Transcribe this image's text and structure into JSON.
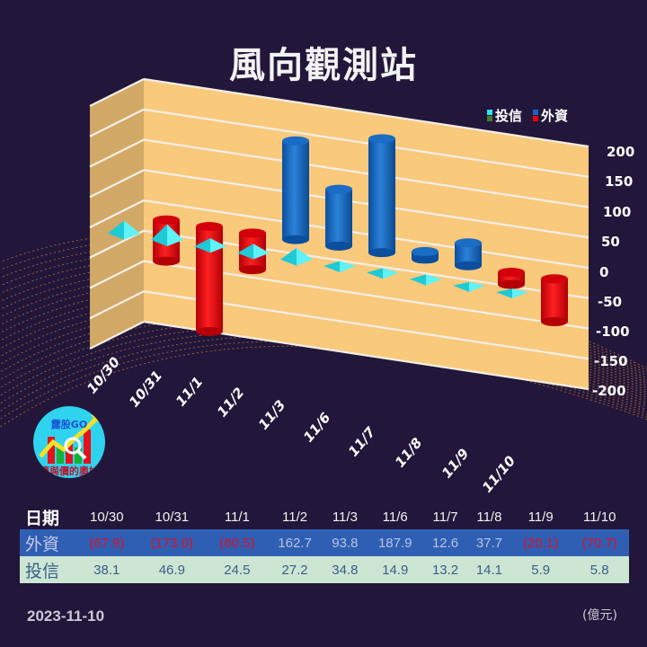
{
  "title": "風向觀測站",
  "legend": [
    {
      "label": "投信",
      "colors": [
        "#2ee6f0",
        "#4a7a2e"
      ]
    },
    {
      "label": "外資",
      "colors": [
        "#1466c2",
        "#e8000c"
      ]
    }
  ],
  "y_ticks": [
    "200",
    "150",
    "100",
    "50",
    "0",
    "-50",
    "-100",
    "-150",
    "-200"
  ],
  "x_labels": [
    "10/30",
    "10/31",
    "11/1",
    "11/2",
    "11/3",
    "11/6",
    "11/7",
    "11/8",
    "11/9",
    "11/10"
  ],
  "logo": {
    "brand": "露股GO",
    "slogan": "籌與價的奧妙"
  },
  "table": {
    "header_label": "日期",
    "dates": [
      "10/30",
      "10/31",
      "11/1",
      "11/2",
      "11/3",
      "11/6",
      "11/7",
      "11/8",
      "11/9",
      "11/10"
    ],
    "foreign": {
      "label": "外資",
      "values": [
        "(67.9)",
        "(173.0)",
        "(60.5)",
        "162.7",
        "93.8",
        "187.9",
        "12.6",
        "37.7",
        "(20.1)",
        "(70.7)"
      ]
    },
    "trust": {
      "label": "投信",
      "values": [
        "38.1",
        "46.9",
        "24.5",
        "27.2",
        "34.8",
        "14.9",
        "13.2",
        "14.1",
        "5.9",
        "5.8"
      ]
    }
  },
  "footer": {
    "date": "2023-11-10",
    "unit": "(億元)"
  },
  "colors": {
    "background": "#22163a",
    "wall": "#f9c97c",
    "foreign_pos": "#1466c2",
    "foreign_neg": "#e8000c",
    "trust": "#2ee6f0"
  },
  "chart_data": {
    "type": "bar",
    "title": "風向觀測站",
    "categories": [
      "10/30",
      "10/31",
      "11/1",
      "11/2",
      "11/3",
      "11/6",
      "11/7",
      "11/8",
      "11/9",
      "11/10"
    ],
    "series": [
      {
        "name": "外資",
        "values": [
          -67.9,
          -173.0,
          -60.5,
          162.7,
          93.8,
          187.9,
          12.6,
          37.7,
          -20.1,
          -70.7
        ]
      },
      {
        "name": "投信",
        "values": [
          38.1,
          46.9,
          24.5,
          27.2,
          34.8,
          14.9,
          13.2,
          14.1,
          5.9,
          5.8
        ]
      }
    ],
    "xlabel": "",
    "ylabel": "",
    "unit": "億元",
    "ylim": [
      -200,
      200
    ],
    "grid": true,
    "legend_position": "top-right"
  }
}
